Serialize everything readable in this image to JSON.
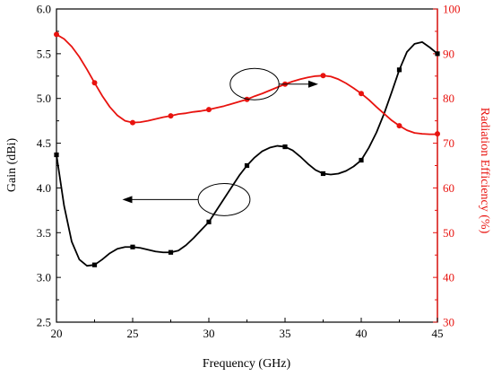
{
  "chart_data": {
    "type": "line",
    "xlabel": "Frequency (GHz)",
    "ylabel_left": "Gain (dBi)",
    "ylabel_right": "Radiation Efficiency (%)",
    "xlim": [
      20,
      45
    ],
    "ylim_left": [
      2.5,
      6.0
    ],
    "ylim_right": [
      30,
      100
    ],
    "x_ticks": [
      20,
      25,
      30,
      35,
      40,
      45
    ],
    "y_ticks_left": [
      2.5,
      3.0,
      3.5,
      4.0,
      4.5,
      5.0,
      5.5,
      6.0
    ],
    "y_ticks_right": [
      30,
      40,
      50,
      60,
      70,
      80,
      90,
      100
    ],
    "x_tick_labels": [
      "20",
      "25",
      "30",
      "35",
      "40",
      "45"
    ],
    "y_tick_labels_left": [
      "2.5",
      "3.0",
      "3.5",
      "4.0",
      "4.5",
      "5.0",
      "5.5",
      "6.0"
    ],
    "y_tick_labels_right": [
      "30",
      "40",
      "50",
      "60",
      "70",
      "80",
      "90",
      "100"
    ],
    "grid": false,
    "series": [
      {
        "axis": "left",
        "color": "#000000",
        "marker": "square",
        "x": [
          20.0,
          22.5,
          25.0,
          27.5,
          30.0,
          32.5,
          35.0,
          37.5,
          40.0,
          42.5,
          45.0
        ],
        "y": [
          4.37,
          3.14,
          3.34,
          3.28,
          3.62,
          4.25,
          4.46,
          4.16,
          4.31,
          5.32,
          5.5
        ],
        "curve_x": [
          20.0,
          20.5,
          21.0,
          21.5,
          22.0,
          22.5,
          23.0,
          23.5,
          24.0,
          24.5,
          25.0,
          25.5,
          26.0,
          26.5,
          27.0,
          27.5,
          28.0,
          28.5,
          29.0,
          29.5,
          30.0,
          30.5,
          31.0,
          31.5,
          32.0,
          32.5,
          33.0,
          33.5,
          34.0,
          34.5,
          35.0,
          35.5,
          36.0,
          36.5,
          37.0,
          37.5,
          38.0,
          38.5,
          39.0,
          39.5,
          40.0,
          40.5,
          41.0,
          41.5,
          42.0,
          42.5,
          43.0,
          43.5,
          44.0,
          44.5,
          45.0
        ],
        "curve_y": [
          4.37,
          3.8,
          3.4,
          3.2,
          3.13,
          3.14,
          3.2,
          3.27,
          3.32,
          3.34,
          3.34,
          3.33,
          3.31,
          3.29,
          3.28,
          3.28,
          3.3,
          3.36,
          3.44,
          3.53,
          3.62,
          3.75,
          3.88,
          4.01,
          4.14,
          4.25,
          4.34,
          4.41,
          4.45,
          4.47,
          4.46,
          4.42,
          4.35,
          4.27,
          4.2,
          4.16,
          4.15,
          4.16,
          4.19,
          4.24,
          4.31,
          4.45,
          4.62,
          4.83,
          5.07,
          5.32,
          5.52,
          5.61,
          5.63,
          5.57,
          5.5
        ]
      },
      {
        "axis": "right",
        "color": "#e8130f",
        "marker": "circle",
        "x": [
          20.0,
          22.5,
          25.0,
          27.5,
          30.0,
          32.5,
          35.0,
          37.5,
          40.0,
          42.5,
          45.0
        ],
        "y": [
          94.3,
          83.5,
          74.6,
          76.1,
          77.5,
          79.8,
          83.2,
          85.1,
          81.1,
          73.9,
          72.1
        ],
        "curve_x": [
          20.0,
          20.5,
          21.0,
          21.5,
          22.0,
          22.5,
          23.0,
          23.5,
          24.0,
          24.5,
          25.0,
          25.5,
          26.0,
          26.5,
          27.0,
          27.5,
          28.0,
          28.5,
          29.0,
          29.5,
          30.0,
          30.5,
          31.0,
          31.5,
          32.0,
          32.5,
          33.0,
          33.5,
          34.0,
          34.5,
          35.0,
          35.5,
          36.0,
          36.5,
          37.0,
          37.5,
          38.0,
          38.5,
          39.0,
          39.5,
          40.0,
          40.5,
          41.0,
          41.5,
          42.0,
          42.5,
          43.0,
          43.5,
          44.0,
          44.5,
          45.0
        ],
        "curve_y": [
          94.3,
          93.3,
          91.6,
          89.3,
          86.5,
          83.5,
          80.6,
          78.1,
          76.2,
          75.0,
          74.6,
          74.7,
          75.0,
          75.4,
          75.8,
          76.1,
          76.5,
          76.7,
          77.0,
          77.2,
          77.5,
          77.9,
          78.3,
          78.8,
          79.3,
          79.8,
          80.5,
          81.1,
          81.8,
          82.5,
          83.2,
          83.8,
          84.3,
          84.7,
          85.0,
          85.1,
          84.9,
          84.3,
          83.4,
          82.3,
          81.1,
          79.7,
          78.1,
          76.6,
          75.1,
          73.9,
          72.9,
          72.3,
          72.1,
          72.0,
          72.0
        ]
      }
    ],
    "annotations": [
      {
        "type": "ellipse",
        "target_axis": "right",
        "cx": 33.0,
        "cy": 83.2,
        "rx": 1.6,
        "ry": 3.5,
        "arrow_to_x": 37.0,
        "arrow_dir": "right"
      },
      {
        "type": "ellipse",
        "target_axis": "left",
        "cx": 31.0,
        "cy": 3.87,
        "rx": 1.7,
        "ry": 0.18,
        "arrow_to_x": 24.5,
        "arrow_dir": "left"
      }
    ]
  }
}
